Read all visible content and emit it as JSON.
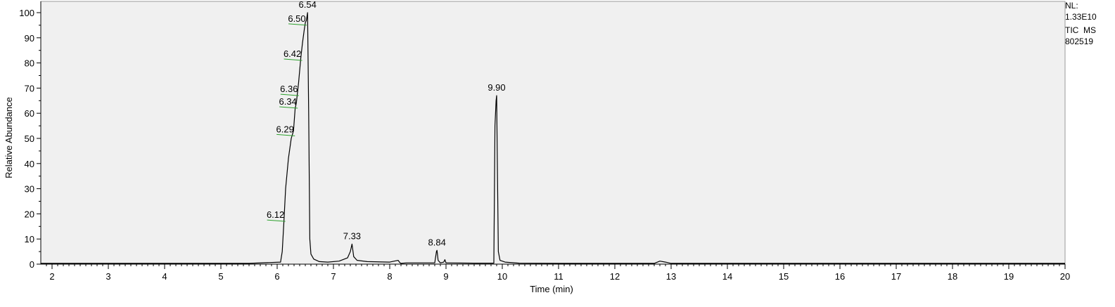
{
  "chart_data": {
    "type": "line",
    "xlabel": "Time (min)",
    "ylabel": "Relative Abundance",
    "xlim": [
      1.8,
      20
    ],
    "ylim": [
      0,
      100
    ],
    "x_ticks": [
      "2",
      "3",
      "4",
      "5",
      "6",
      "7",
      "8",
      "9",
      "10",
      "11",
      "12",
      "13",
      "14",
      "15",
      "16",
      "17",
      "18",
      "19",
      "20"
    ],
    "y_ticks": [
      "0",
      "10",
      "20",
      "30",
      "40",
      "50",
      "60",
      "70",
      "80",
      "90",
      "100"
    ],
    "info": [
      "NL:",
      "1.33E10",
      "TIC  MS",
      "802519"
    ],
    "colors": {
      "trace": "#000000",
      "plot_bg": "#f0f0f0",
      "peak_marker": "#2ca02c"
    },
    "series": [
      {
        "x": [
          1.8,
          5.5,
          6.06,
          6.09,
          6.12,
          6.15,
          6.2,
          6.25,
          6.29,
          6.32,
          6.34,
          6.35,
          6.36,
          6.38,
          6.42,
          6.45,
          6.48,
          6.5,
          6.52,
          6.54,
          6.56,
          6.58,
          6.6,
          6.65,
          6.75,
          6.9,
          7.1,
          7.25,
          7.3,
          7.33,
          7.36,
          7.42,
          7.6,
          8.0,
          8.15,
          8.18,
          8.2,
          8.3,
          8.8,
          8.83,
          8.84,
          8.86,
          8.9,
          8.96,
          8.98,
          9.0,
          9.5,
          9.85,
          9.87,
          9.89,
          9.9,
          9.91,
          9.93,
          9.96,
          10.05,
          10.3,
          11.0,
          12.7,
          12.8,
          12.9,
          13.0,
          14.0,
          20.0
        ],
        "y": [
          0.3,
          0.3,
          0.8,
          5,
          17,
          30,
          42,
          50,
          53,
          62,
          64,
          66,
          68,
          72,
          82,
          88,
          93,
          96,
          97,
          100,
          60,
          10,
          4,
          2,
          1,
          0.8,
          1.2,
          2.5,
          5,
          8,
          3,
          1.5,
          1,
          0.8,
          1.5,
          0.6,
          0.3,
          0.5,
          0.5,
          5,
          5.5,
          1.5,
          0.5,
          0.8,
          1.8,
          0.5,
          0.4,
          0.4,
          55,
          65,
          67,
          45,
          5,
          1.5,
          0.8,
          0.4,
          0.3,
          0.3,
          1.2,
          0.8,
          0.3,
          0.3,
          0.3
        ]
      }
    ],
    "peak_labels": [
      {
        "label": "6.12",
        "x": 6.12,
        "y": 17,
        "marker": true
      },
      {
        "label": "6.29",
        "x": 6.29,
        "y": 51,
        "marker": true
      },
      {
        "label": "6.34",
        "x": 6.34,
        "y": 62,
        "marker": true
      },
      {
        "label": "6.36",
        "x": 6.36,
        "y": 67,
        "marker": true
      },
      {
        "label": "6.42",
        "x": 6.42,
        "y": 81,
        "marker": true
      },
      {
        "label": "6.50",
        "x": 6.5,
        "y": 95,
        "marker": true
      },
      {
        "label": "6.54",
        "x": 6.54,
        "y": 100,
        "marker": false
      },
      {
        "label": "7.33",
        "x": 7.33,
        "y": 8,
        "marker": false
      },
      {
        "label": "8.84",
        "x": 8.84,
        "y": 5.5,
        "marker": false
      },
      {
        "label": "9.90",
        "x": 9.9,
        "y": 67,
        "marker": false
      }
    ]
  }
}
